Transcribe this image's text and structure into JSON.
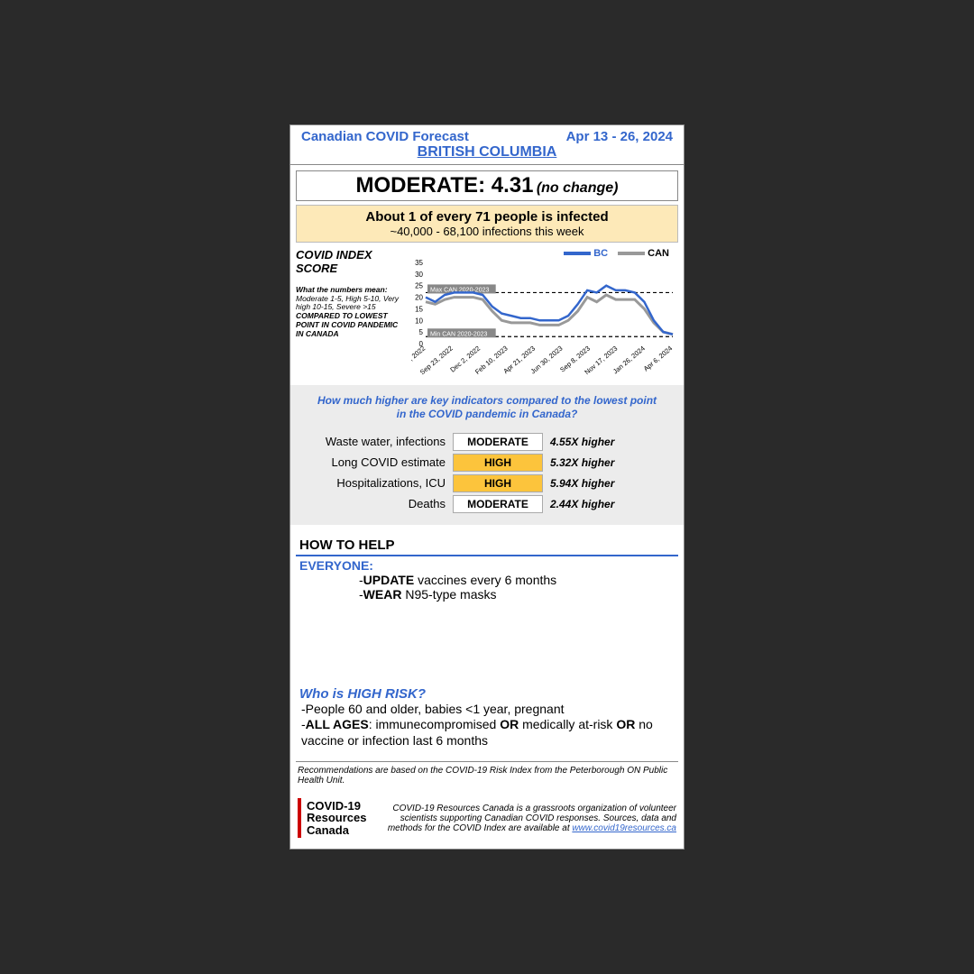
{
  "header": {
    "title": "Canadian COVID Forecast",
    "dates": "Apr 13 - 26, 2024",
    "region": "BRITISH COLUMBIA"
  },
  "score": {
    "level": "MODERATE",
    "value": "4.31",
    "change": "(no change)"
  },
  "infection": {
    "rate": "About 1 of every 71 people is infected",
    "count": "~40,000 - 68,100 infections this week"
  },
  "chart": {
    "title": "COVID INDEX SCORE",
    "desc_intro": "What the numbers mean:",
    "desc_body": "Moderate 1-5, High 5-10, Very high 10-15, Severe >15",
    "desc_compare": "COMPARED TO LOWEST POINT IN COVID PANDEMIC IN CANADA",
    "legend_bc": "BC",
    "legend_can": "CAN",
    "color_bc": "#3366cc",
    "color_can": "#999999",
    "bg": "#ffffff",
    "ylim": [
      0,
      35
    ],
    "ytick_step": 5,
    "max_line_y": 22,
    "max_label": "Max CAN 2020-2023",
    "min_line_y": 3,
    "min_label": "Min CAN 2020-2023",
    "x_labels": [
      ", 2022",
      "Sep 23, 2022",
      "Dec 2, 2022",
      "Feb 10, 2023",
      "Apr 21, 2023",
      "Jun 30, 2023",
      "Sep 8, 2023",
      "Nov 17, 2023",
      "Jan 26, 2024",
      "Apr 6, 2024"
    ],
    "bc_values": [
      20,
      18,
      21,
      22,
      22,
      22,
      21,
      16,
      13,
      12,
      11,
      11,
      10,
      10,
      10,
      12,
      17,
      23,
      22,
      25,
      23,
      23,
      22,
      18,
      10,
      5,
      4
    ],
    "can_values": [
      18,
      17,
      19,
      20,
      20,
      20,
      19,
      14,
      10,
      9,
      9,
      9,
      8,
      8,
      8,
      10,
      14,
      20,
      18,
      21,
      19,
      19,
      19,
      15,
      9,
      5,
      4
    ]
  },
  "indicators": {
    "heading": "How much higher are key indicators compared to the lowest point in the COVID pandemic in Canada?",
    "rows": [
      {
        "label": "Waste water, infections",
        "level": "MODERATE",
        "mult": "4.55X higher",
        "bg": "#ffffff"
      },
      {
        "label": "Long COVID estimate",
        "level": "HIGH",
        "mult": "5.32X higher",
        "bg": "#fcc43c"
      },
      {
        "label": "Hospitalizations, ICU",
        "level": "HIGH",
        "mult": "5.94X higher",
        "bg": "#fcc43c"
      },
      {
        "label": "Deaths",
        "level": "MODERATE",
        "mult": "2.44X higher",
        "bg": "#ffffff"
      }
    ]
  },
  "help": {
    "heading": "HOW TO HELP",
    "everyone": "EVERYONE:",
    "advice1_pre": "-",
    "advice1_strong": "UPDATE",
    "advice1_rest": " vaccines every 6 months",
    "advice2_pre": "-",
    "advice2_strong": "WEAR",
    "advice2_rest": " N95-type masks",
    "highrisk_h": "Who is HIGH RISK?",
    "risk1": "-People 60 and older, babies <1 year, pregnant",
    "risk2_pre": "-",
    "risk2_b1": "ALL AGES",
    "risk2_mid1": ": immunecompromised ",
    "risk2_b2": "OR",
    "risk2_mid2": " medically at-risk ",
    "risk2_b3": "OR",
    "risk2_end": " no vaccine or infection last 6 months"
  },
  "footnote": "Recommendations are based on the COVID-19 Risk Index from the Peterborough ON Public Health Unit.",
  "footer": {
    "logo1": "COVID-19",
    "logo2": "Resources",
    "logo3": "Canada",
    "text": "COVID-19 Resources Canada is a grassroots organization of volunteer scientists supporting Canadian COVID responses. Sources, data and methods for the COVID Index are available at ",
    "link": "www.covid19resources.ca"
  }
}
